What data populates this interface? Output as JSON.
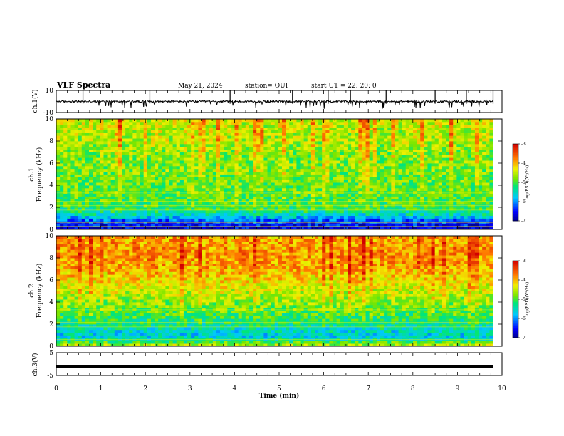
{
  "header": {
    "title": "VLF Spectra",
    "date": "May 21, 2024",
    "station": "station= OUI",
    "start_ut": "start UT =  22: 20: 0"
  },
  "colors": {
    "spectrum_low": "#0000a0",
    "spectrum_high": "#e02000",
    "trace": "#000000"
  },
  "chart_data": [
    {
      "type": "line",
      "panel": "ch1-waveform",
      "ylabel": "ch.1(V)",
      "ylim": [
        -10,
        10
      ],
      "yticks": [
        10,
        -10
      ],
      "xlim": [
        0,
        10
      ],
      "baseline": 0,
      "note_values": {
        "spike_times_min": [
          0.6,
          2.1,
          3.9,
          5.3,
          6.1,
          6.6,
          7.4,
          8.5,
          9.2,
          9.8
        ]
      }
    },
    {
      "type": "heatmap",
      "panel": "ch1-spectrogram",
      "ylabel": "ch.1\nFrequency (kHz)",
      "ylim": [
        0,
        10
      ],
      "yticks": [
        0,
        2,
        4,
        6,
        8,
        10
      ],
      "xlim": [
        0,
        9.8
      ],
      "colorbar": {
        "label": "log(PSD)(V²/Hz)",
        "range": [
          -7,
          -3
        ],
        "ticks": [
          -3,
          -4,
          -5,
          -6,
          -7
        ]
      },
      "profile_log_psd_by_freq_khz": [
        [
          0.25,
          -6.6
        ],
        [
          0.75,
          -6.3
        ],
        [
          1.25,
          -5.6
        ],
        [
          1.75,
          -5.2
        ],
        [
          2.25,
          -5.0
        ],
        [
          2.75,
          -4.95
        ],
        [
          3.25,
          -4.9
        ],
        [
          4.0,
          -4.85
        ],
        [
          5.0,
          -4.8
        ],
        [
          6.0,
          -4.75
        ],
        [
          7.0,
          -4.7
        ],
        [
          8.0,
          -4.55
        ],
        [
          9.0,
          -4.5
        ],
        [
          10.0,
          -4.4
        ]
      ]
    },
    {
      "type": "heatmap",
      "panel": "ch2-spectrogram",
      "ylabel": "ch.2\nFrequency (kHz)",
      "ylim": [
        0,
        10
      ],
      "yticks": [
        0,
        2,
        4,
        6,
        8,
        10
      ],
      "xlim": [
        0,
        9.8
      ],
      "colorbar": {
        "label": "log(PSD)(V²/Hz)",
        "range": [
          -7,
          -3
        ],
        "ticks": [
          -3,
          -4,
          -5,
          -6,
          -7
        ]
      },
      "profile_log_psd_by_freq_khz": [
        [
          0.25,
          -4.8
        ],
        [
          0.75,
          -5.6
        ],
        [
          1.25,
          -5.6
        ],
        [
          1.75,
          -5.4
        ],
        [
          2.25,
          -5.2
        ],
        [
          2.75,
          -5.0
        ],
        [
          3.25,
          -4.9
        ],
        [
          4.0,
          -4.7
        ],
        [
          5.0,
          -4.45
        ],
        [
          6.0,
          -4.2
        ],
        [
          7.0,
          -3.95
        ],
        [
          8.0,
          -3.85
        ],
        [
          9.0,
          -3.85
        ],
        [
          10.0,
          -3.9
        ]
      ]
    },
    {
      "type": "line",
      "panel": "ch3-waveform",
      "ylabel": "ch.3(V)",
      "ylim": [
        -5,
        5
      ],
      "yticks": [
        5,
        -5
      ],
      "xlim": [
        0,
        9.8
      ],
      "values_flat": -1.2
    }
  ],
  "xaxis": {
    "label": "Time (min)",
    "ticks": [
      "0",
      "1",
      "2",
      "3",
      "4",
      "5",
      "6",
      "7",
      "8",
      "9",
      "10"
    ],
    "xlim": [
      0,
      10
    ]
  }
}
